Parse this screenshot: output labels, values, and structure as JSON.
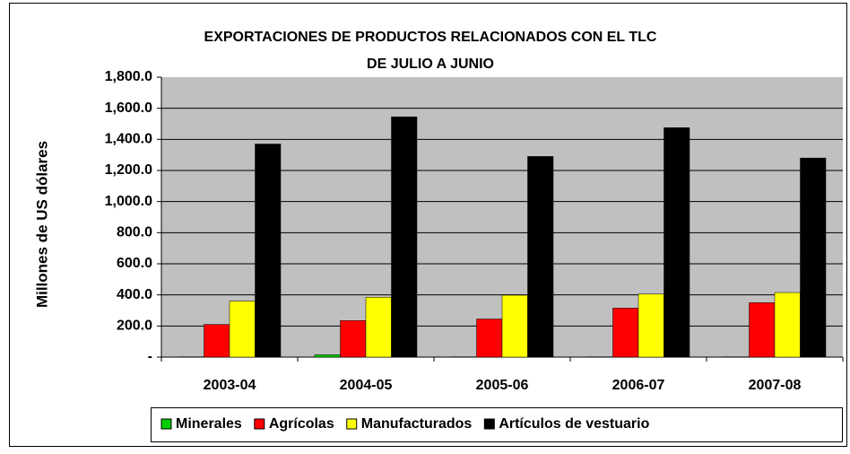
{
  "chart_data": {
    "type": "bar",
    "title": "EXPORTACIONES DE PRODUCTOS RELACIONADOS CON EL TLC",
    "subtitle": "DE JULIO A JUNIO",
    "y_label": "Millones de US dólares",
    "categories": [
      "2003-04",
      "2004-05",
      "2005-06",
      "2006-07",
      "2007-08"
    ],
    "series": [
      {
        "name": "Minerales",
        "color": "#00cc00",
        "values": [
          2,
          15,
          2,
          2,
          2
        ]
      },
      {
        "name": "Agrícolas",
        "color": "#ff0000",
        "values": [
          210,
          235,
          245,
          315,
          350
        ]
      },
      {
        "name": "Manufacturados",
        "color": "#ffff00",
        "values": [
          360,
          385,
          398,
          405,
          415
        ]
      },
      {
        "name": "Artículos de vestuario",
        "color": "#000000",
        "values": [
          1370,
          1545,
          1290,
          1475,
          1280
        ]
      }
    ],
    "ylim": [
      0,
      1800
    ],
    "yticks": [
      {
        "value": 0,
        "label": "-"
      },
      {
        "value": 200,
        "label": "200.0"
      },
      {
        "value": 400,
        "label": "400.0"
      },
      {
        "value": 600,
        "label": "600.0"
      },
      {
        "value": 800,
        "label": "800.0"
      },
      {
        "value": 1000,
        "label": "1,000.0"
      },
      {
        "value": 1200,
        "label": "1,200.0"
      },
      {
        "value": 1400,
        "label": "1,400.0"
      },
      {
        "value": 1600,
        "label": "1,600.0"
      },
      {
        "value": 1800,
        "label": "1,800.0"
      }
    ],
    "grid": true,
    "legend": "bottom"
  }
}
